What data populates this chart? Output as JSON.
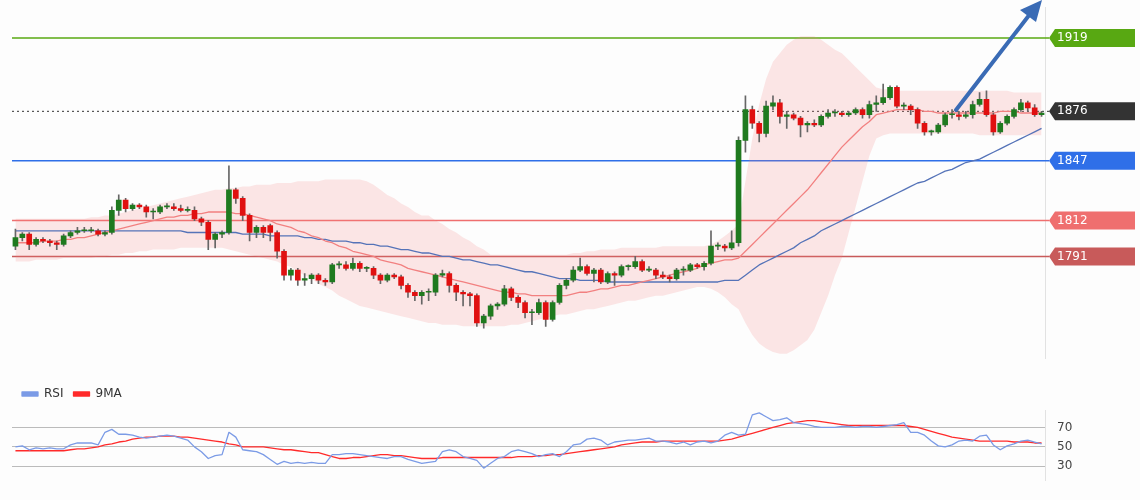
{
  "chart_data": [
    {
      "type": "candlestick",
      "categories": [
        null,
        null,
        null,
        null,
        null,
        null,
        null,
        null,
        null,
        null,
        null,
        null,
        null,
        null,
        null,
        null,
        null,
        null,
        null,
        null,
        null,
        null,
        null,
        null,
        null,
        null,
        null,
        null,
        null,
        null,
        null,
        null,
        null,
        null,
        null,
        null,
        null,
        null,
        null,
        null,
        null,
        null,
        null,
        null,
        null,
        null,
        null,
        null,
        null,
        null,
        null,
        null,
        null,
        null,
        null,
        null,
        null,
        null,
        null,
        null,
        null,
        null,
        null,
        null,
        null,
        null,
        null,
        null,
        null,
        null,
        null,
        null,
        null,
        null,
        null,
        null,
        null,
        null,
        null,
        null,
        null,
        null,
        null,
        null,
        null,
        null,
        null,
        null,
        null,
        null,
        null,
        null,
        null,
        null,
        null,
        null,
        null,
        null,
        null,
        null,
        null,
        null,
        null,
        null,
        null,
        null,
        null,
        null,
        null,
        null,
        null,
        null,
        null,
        null,
        null,
        null,
        null,
        null,
        null,
        null,
        null,
        null,
        null,
        null,
        null,
        null,
        null,
        null,
        null,
        null,
        null,
        null,
        null,
        null,
        null,
        null,
        null,
        null,
        null,
        null,
        null,
        null,
        null,
        null,
        null,
        null,
        null,
        null,
        null,
        null
      ],
      "ohlc": [
        [
          1797,
          1807,
          1795,
          1802
        ],
        [
          1802,
          1805,
          1800,
          1804
        ],
        [
          1804,
          1805,
          1795,
          1798
        ],
        [
          1798,
          1802,
          1797,
          1801
        ],
        [
          1801,
          1802,
          1799,
          1800
        ],
        [
          1800,
          1801,
          1797,
          1799
        ],
        [
          1799,
          1800,
          1795,
          1798
        ],
        [
          1798,
          1804,
          1797,
          1803
        ],
        [
          1803,
          1806,
          1802,
          1805
        ],
        [
          1805,
          1808,
          1804,
          1806
        ],
        [
          1806,
          1808,
          1805,
          1806
        ],
        [
          1806,
          1808,
          1805,
          1806
        ],
        [
          1806,
          1807,
          1803,
          1804
        ],
        [
          1804,
          1806,
          1803,
          1805
        ],
        [
          1805,
          1820,
          1804,
          1818
        ],
        [
          1818,
          1827,
          1815,
          1824
        ],
        [
          1824,
          1825,
          1817,
          1819
        ],
        [
          1819,
          1822,
          1818,
          1821
        ],
        [
          1821,
          1822,
          1819,
          1820
        ],
        [
          1820,
          1821,
          1814,
          1817
        ],
        [
          1817,
          1819,
          1813,
          1817
        ],
        [
          1817,
          1821,
          1816,
          1820
        ],
        [
          1820,
          1822,
          1819,
          1820
        ],
        [
          1820,
          1822,
          1818,
          1819
        ],
        [
          1819,
          1821,
          1817,
          1818
        ],
        [
          1818,
          1820,
          1817,
          1818
        ],
        [
          1818,
          1820,
          1812,
          1813
        ],
        [
          1813,
          1814,
          1809,
          1811
        ],
        [
          1811,
          1812,
          1795,
          1801
        ],
        [
          1801,
          1805,
          1796,
          1804
        ],
        [
          1804,
          1806,
          1802,
          1805
        ],
        [
          1805,
          1844,
          1804,
          1830
        ],
        [
          1830,
          1831,
          1822,
          1825
        ],
        [
          1825,
          1826,
          1812,
          1815
        ],
        [
          1815,
          1816,
          1800,
          1805
        ],
        [
          1805,
          1809,
          1802,
          1808
        ],
        [
          1808,
          1809,
          1802,
          1805
        ],
        [
          1809,
          1810,
          1800,
          1805
        ],
        [
          1805,
          1806,
          1790,
          1794
        ],
        [
          1794,
          1795,
          1777,
          1780
        ],
        [
          1780,
          1784,
          1777,
          1783
        ],
        [
          1783,
          1784,
          1774,
          1777
        ],
        [
          1777,
          1781,
          1774,
          1778
        ],
        [
          1778,
          1781,
          1775,
          1780
        ],
        [
          1780,
          1781,
          1775,
          1777
        ],
        [
          1777,
          1778,
          1774,
          1776
        ],
        [
          1776,
          1787,
          1775,
          1786
        ],
        [
          1786,
          1788,
          1784,
          1786
        ],
        [
          1786,
          1788,
          1783,
          1784
        ],
        [
          1784,
          1790,
          1783,
          1787
        ],
        [
          1787,
          1788,
          1782,
          1784
        ],
        [
          1784,
          1785,
          1782,
          1784
        ],
        [
          1784,
          1785,
          1778,
          1780
        ],
        [
          1780,
          1781,
          1775,
          1777
        ],
        [
          1777,
          1781,
          1776,
          1780
        ],
        [
          1780,
          1781,
          1778,
          1779
        ],
        [
          1779,
          1780,
          1772,
          1774
        ],
        [
          1774,
          1775,
          1767,
          1770
        ],
        [
          1770,
          1771,
          1765,
          1768
        ],
        [
          1768,
          1771,
          1763,
          1770
        ],
        [
          1770,
          1772,
          1765,
          1770
        ],
        [
          1770,
          1781,
          1768,
          1780
        ],
        [
          1780,
          1783,
          1779,
          1781
        ],
        [
          1781,
          1782,
          1770,
          1774
        ],
        [
          1774,
          1775,
          1765,
          1770
        ],
        [
          1770,
          1771,
          1762,
          1769
        ],
        [
          1769,
          1770,
          1762,
          1768
        ],
        [
          1768,
          1769,
          1750,
          1752
        ],
        [
          1752,
          1757,
          1749,
          1756
        ],
        [
          1756,
          1763,
          1754,
          1762
        ],
        [
          1762,
          1764,
          1760,
          1763
        ],
        [
          1763,
          1774,
          1762,
          1772
        ],
        [
          1772,
          1773,
          1765,
          1767
        ],
        [
          1767,
          1768,
          1761,
          1764
        ],
        [
          1764,
          1765,
          1755,
          1758
        ],
        [
          1758,
          1760,
          1751,
          1758
        ],
        [
          1758,
          1766,
          1757,
          1764
        ],
        [
          1764,
          1765,
          1750,
          1754
        ],
        [
          1754,
          1765,
          1753,
          1764
        ],
        [
          1764,
          1775,
          1763,
          1774
        ],
        [
          1774,
          1778,
          1772,
          1777
        ],
        [
          1777,
          1785,
          1776,
          1783
        ],
        [
          1783,
          1790,
          1782,
          1785
        ],
        [
          1785,
          1786,
          1780,
          1781
        ],
        [
          1781,
          1784,
          1776,
          1783
        ],
        [
          1783,
          1784,
          1775,
          1776
        ],
        [
          1776,
          1782,
          1775,
          1781
        ],
        [
          1781,
          1782,
          1774,
          1780
        ],
        [
          1780,
          1786,
          1779,
          1785
        ],
        [
          1785,
          1786,
          1783,
          1785
        ],
        [
          1785,
          1791,
          1784,
          1788
        ],
        [
          1788,
          1789,
          1782,
          1783
        ],
        [
          1783,
          1785,
          1782,
          1783
        ],
        [
          1783,
          1784,
          1778,
          1780
        ],
        [
          1780,
          1782,
          1778,
          1779
        ],
        [
          1779,
          1780,
          1776,
          1778
        ],
        [
          1778,
          1784,
          1777,
          1783
        ],
        [
          1783,
          1785,
          1780,
          1783
        ],
        [
          1783,
          1787,
          1782,
          1786
        ],
        [
          1786,
          1787,
          1784,
          1785
        ],
        [
          1785,
          1788,
          1783,
          1787
        ],
        [
          1787,
          1806,
          1786,
          1797
        ],
        [
          1797,
          1799,
          1795,
          1797
        ],
        [
          1797,
          1798,
          1794,
          1796
        ],
        [
          1796,
          1806,
          1795,
          1799
        ],
        [
          1799,
          1861,
          1797,
          1859
        ],
        [
          1859,
          1885,
          1852,
          1877
        ],
        [
          1877,
          1879,
          1866,
          1869
        ],
        [
          1869,
          1870,
          1858,
          1863
        ],
        [
          1863,
          1882,
          1861,
          1879
        ],
        [
          1879,
          1885,
          1877,
          1881
        ],
        [
          1881,
          1883,
          1869,
          1873
        ],
        [
          1873,
          1876,
          1866,
          1874
        ],
        [
          1874,
          1875,
          1871,
          1872
        ],
        [
          1872,
          1873,
          1861,
          1868
        ],
        [
          1868,
          1870,
          1864,
          1869
        ],
        [
          1869,
          1871,
          1867,
          1868
        ],
        [
          1868,
          1874,
          1867,
          1873
        ],
        [
          1873,
          1877,
          1872,
          1875
        ],
        [
          1875,
          1877,
          1873,
          1875
        ],
        [
          1875,
          1876,
          1873,
          1874
        ],
        [
          1874,
          1876,
          1873,
          1875
        ],
        [
          1875,
          1878,
          1874,
          1877
        ],
        [
          1877,
          1878,
          1872,
          1874
        ],
        [
          1874,
          1882,
          1872,
          1880
        ],
        [
          1880,
          1885,
          1876,
          1881
        ],
        [
          1881,
          1892,
          1880,
          1884
        ],
        [
          1884,
          1891,
          1883,
          1890
        ],
        [
          1890,
          1891,
          1878,
          1879
        ],
        [
          1879,
          1881,
          1877,
          1879
        ],
        [
          1879,
          1880,
          1874,
          1877
        ],
        [
          1877,
          1878,
          1866,
          1869
        ],
        [
          1869,
          1870,
          1862,
          1864
        ],
        [
          1864,
          1865,
          1862,
          1864
        ],
        [
          1864,
          1869,
          1863,
          1868
        ],
        [
          1868,
          1875,
          1867,
          1874
        ],
        [
          1874,
          1877,
          1872,
          1874
        ],
        [
          1874,
          1876,
          1871,
          1873
        ],
        [
          1873,
          1876,
          1872,
          1874
        ],
        [
          1874,
          1882,
          1872,
          1880
        ],
        [
          1880,
          1887,
          1879,
          1883
        ],
        [
          1883,
          1888,
          1873,
          1874
        ],
        [
          1874,
          1875,
          1862,
          1864
        ],
        [
          1864,
          1870,
          1863,
          1869
        ],
        [
          1869,
          1874,
          1868,
          1873
        ],
        [
          1873,
          1878,
          1872,
          1877
        ],
        [
          1877,
          1883,
          1876,
          1881
        ],
        [
          1881,
          1882,
          1876,
          1878
        ],
        [
          1878,
          1880,
          1873,
          1874
        ],
        [
          1874,
          1876,
          1873,
          1875
        ]
      ],
      "series": [
        {
          "type": "line",
          "color": "#f28080",
          "values": [
            1799,
            1799,
            1799,
            1799,
            1800,
            1800,
            1800,
            1801,
            1801,
            1802,
            1802,
            1803,
            1804,
            1805,
            1806,
            1807,
            1808,
            1809,
            1810,
            1811,
            1812,
            1813,
            1814,
            1814,
            1815,
            1815,
            1816,
            1816,
            1817,
            1817,
            1817,
            1817,
            1816,
            1816,
            1815,
            1814,
            1813,
            1812,
            1810,
            1809,
            1808,
            1806,
            1805,
            1803,
            1802,
            1800,
            1799,
            1797,
            1796,
            1794,
            1793,
            1792,
            1791,
            1789,
            1788,
            1787,
            1786,
            1784,
            1783,
            1782,
            1781,
            1780,
            1779,
            1778,
            1777,
            1776,
            1775,
            1774,
            1773,
            1772,
            1771,
            1770,
            1770,
            1769,
            1769,
            1768,
            1768,
            1768,
            1768,
            1768,
            1768,
            1769,
            1770,
            1770,
            1771,
            1772,
            1772,
            1773,
            1774,
            1774,
            1775,
            1776,
            1777,
            1778,
            1779,
            1780,
            1781,
            1782,
            1783,
            1784,
            1786,
            1787,
            1788,
            1789,
            1789,
            1790,
            1794,
            1798,
            1802,
            1806,
            1810,
            1814,
            1818,
            1822,
            1826,
            1830,
            1835,
            1840,
            1845,
            1850,
            1855,
            1859,
            1863,
            1867,
            1870,
            1874,
            1875,
            1876,
            1877,
            1877,
            1877,
            1877,
            1876,
            1876,
            1875,
            1875,
            1875,
            1875,
            1875,
            1875,
            1875,
            1875,
            1875,
            1876,
            1876,
            1876,
            1875,
            1875,
            1875,
            1875
          ],
          "upper": [
            1813,
            1813,
            1813,
            1813,
            1813,
            1813,
            1813,
            1813,
            1813,
            1813,
            1813,
            1814,
            1814,
            1815,
            1815,
            1816,
            1817,
            1818,
            1819,
            1820,
            1821,
            1822,
            1823,
            1824,
            1825,
            1826,
            1827,
            1828,
            1829,
            1830,
            1830,
            1831,
            1831,
            1832,
            1832,
            1833,
            1833,
            1833,
            1834,
            1834,
            1834,
            1835,
            1835,
            1835,
            1835,
            1836,
            1836,
            1836,
            1836,
            1836,
            1836,
            1835,
            1833,
            1830,
            1827,
            1825,
            1822,
            1820,
            1817,
            1815,
            1815,
            1812,
            1810,
            1807,
            1805,
            1802,
            1800,
            1797,
            1795,
            1792,
            1792,
            1792,
            1792,
            1792,
            1792,
            1792,
            1792,
            1792,
            1792,
            1792,
            1792,
            1793,
            1793,
            1794,
            1794,
            1795,
            1795,
            1795,
            1796,
            1796,
            1796,
            1796,
            1796,
            1796,
            1797,
            1797,
            1797,
            1797,
            1797,
            1797,
            1797,
            1798,
            1800,
            1803,
            1806,
            1810,
            1835,
            1860,
            1880,
            1895,
            1905,
            1910,
            1915,
            1918,
            1920,
            1920,
            1920,
            1918,
            1915,
            1912,
            1910,
            1906,
            1902,
            1898,
            1894,
            1890,
            1889,
            1889,
            1888,
            1888,
            1888,
            1888,
            1888,
            1888,
            1888,
            1888,
            1888,
            1888,
            1888,
            1888,
            1888,
            1888,
            1888,
            1888,
            1888,
            1887,
            1887,
            1887,
            1887,
            1887
          ],
          "lower": [
            1788,
            1788,
            1788,
            1789,
            1789,
            1789,
            1789,
            1790,
            1790,
            1790,
            1790,
            1790,
            1791,
            1791,
            1792,
            1792,
            1793,
            1793,
            1794,
            1794,
            1795,
            1795,
            1795,
            1795,
            1796,
            1796,
            1796,
            1796,
            1796,
            1796,
            1796,
            1795,
            1794,
            1793,
            1792,
            1791,
            1790,
            1789,
            1788,
            1786,
            1785,
            1782,
            1780,
            1778,
            1775,
            1773,
            1771,
            1768,
            1766,
            1764,
            1762,
            1761,
            1760,
            1759,
            1758,
            1757,
            1756,
            1755,
            1754,
            1753,
            1752,
            1752,
            1751,
            1751,
            1751,
            1750,
            1750,
            1750,
            1750,
            1750,
            1750,
            1750,
            1751,
            1751,
            1752,
            1753,
            1754,
            1755,
            1756,
            1757,
            1757,
            1758,
            1759,
            1760,
            1760,
            1761,
            1762,
            1763,
            1764,
            1765,
            1765,
            1766,
            1767,
            1768,
            1768,
            1769,
            1770,
            1771,
            1772,
            1773,
            1773,
            1772,
            1770,
            1767,
            1763,
            1760,
            1752,
            1745,
            1740,
            1737,
            1735,
            1734,
            1734,
            1736,
            1739,
            1742,
            1748,
            1758,
            1768,
            1780,
            1790,
            1805,
            1820,
            1835,
            1850,
            1860,
            1862,
            1863,
            1863,
            1863,
            1863,
            1863,
            1863,
            1863,
            1863,
            1863,
            1863,
            1863,
            1863,
            1863,
            1862,
            1862,
            1862,
            1862,
            1862,
            1862,
            1862,
            1862,
            1862,
            1862
          ]
        },
        {
          "type": "line",
          "color": "#5573b8",
          "values": [
            1806,
            1806,
            1806,
            1806,
            1806,
            1806,
            1806,
            1806,
            1806,
            1806,
            1806,
            1806,
            1806,
            1806,
            1806,
            1806,
            1806,
            1806,
            1806,
            1806,
            1806,
            1806,
            1806,
            1806,
            1806,
            1805,
            1805,
            1805,
            1805,
            1805,
            1805,
            1805,
            1805,
            1804,
            1804,
            1804,
            1804,
            1803,
            1803,
            1803,
            1803,
            1803,
            1802,
            1802,
            1801,
            1801,
            1800,
            1800,
            1800,
            1799,
            1799,
            1798,
            1798,
            1797,
            1797,
            1796,
            1795,
            1795,
            1794,
            1793,
            1793,
            1792,
            1791,
            1791,
            1790,
            1789,
            1789,
            1788,
            1787,
            1786,
            1786,
            1785,
            1784,
            1783,
            1782,
            1782,
            1781,
            1780,
            1779,
            1778,
            1778,
            1778,
            1777,
            1777,
            1777,
            1777,
            1776,
            1776,
            1776,
            1776,
            1776,
            1776,
            1776,
            1776,
            1776,
            1776,
            1776,
            1776,
            1776,
            1776,
            1776,
            1776,
            1776,
            1777,
            1777,
            1777,
            1780,
            1783,
            1786,
            1788,
            1790,
            1792,
            1794,
            1796,
            1799,
            1801,
            1803,
            1806,
            1808,
            1810,
            1812,
            1814,
            1816,
            1818,
            1820,
            1822,
            1824,
            1826,
            1828,
            1830,
            1832,
            1834,
            1835,
            1837,
            1839,
            1841,
            1842,
            1844,
            1846,
            1847,
            1848,
            1850,
            1852,
            1854,
            1856,
            1858,
            1860,
            1862,
            1864,
            1866
          ]
        }
      ],
      "ylim": [
        1731,
        1937
      ],
      "yticks": [
        1791,
        1812,
        1847,
        1876,
        1919
      ],
      "tick_labels": "y",
      "ref_lines": [
        {
          "axis": "y",
          "value": 1919,
          "color": "#58a812",
          "line_style": "solid"
        },
        {
          "axis": "y",
          "value": 1876,
          "color": "#333333",
          "line_style": "dotted"
        },
        {
          "axis": "y",
          "value": 1847,
          "color": "#2f6fe8",
          "line_style": "solid"
        },
        {
          "axis": "y",
          "value": 1812,
          "color": "#ef6f6f",
          "line_style": "solid"
        },
        {
          "axis": "y",
          "value": 1791,
          "color": "#c85a5a",
          "line_style": "solid"
        }
      ]
    },
    {
      "type": "line",
      "categories": [
        null,
        null,
        null,
        null,
        null,
        null,
        null,
        null,
        null,
        null,
        null,
        null,
        null,
        null,
        null,
        null,
        null,
        null,
        null,
        null,
        null,
        null,
        null,
        null,
        null,
        null,
        null,
        null,
        null,
        null,
        null,
        null,
        null,
        null,
        null,
        null,
        null,
        null,
        null,
        null,
        null,
        null,
        null,
        null,
        null,
        null,
        null,
        null,
        null,
        null,
        null,
        null,
        null,
        null,
        null,
        null,
        null,
        null,
        null,
        null,
        null,
        null,
        null,
        null,
        null,
        null,
        null,
        null,
        null,
        null,
        null,
        null,
        null,
        null,
        null,
        null,
        null,
        null,
        null,
        null,
        null,
        null,
        null,
        null,
        null,
        null,
        null,
        null,
        null,
        null,
        null,
        null,
        null,
        null,
        null,
        null,
        null,
        null,
        null,
        null,
        null,
        null,
        null,
        null,
        null,
        null,
        null,
        null,
        null,
        null,
        null,
        null,
        null,
        null,
        null,
        null,
        null,
        null,
        null,
        null,
        null,
        null,
        null,
        null,
        null,
        null,
        null,
        null,
        null,
        null,
        null,
        null,
        null,
        null,
        null,
        null,
        null,
        null,
        null,
        null,
        null,
        null,
        null,
        null,
        null,
        null,
        null,
        null,
        null,
        null
      ],
      "series": [
        {
          "name": "RSI",
          "color": "#7b9be6",
          "values": [
            50,
            51,
            47,
            49,
            48,
            49,
            48,
            48,
            52,
            54,
            54,
            54,
            52,
            65,
            68,
            63,
            63,
            62,
            60,
            59,
            60,
            61,
            62,
            61,
            59,
            57,
            50,
            45,
            38,
            41,
            42,
            65,
            60,
            47,
            46,
            45,
            42,
            37,
            32,
            35,
            33,
            34,
            33,
            34,
            33,
            33,
            42,
            42,
            43,
            43,
            42,
            41,
            40,
            39,
            38,
            40,
            40,
            37,
            35,
            33,
            34,
            35,
            45,
            47,
            45,
            40,
            38,
            36,
            28,
            33,
            38,
            40,
            45,
            47,
            45,
            43,
            40,
            42,
            43,
            40,
            45,
            52,
            53,
            58,
            59,
            57,
            52,
            55,
            56,
            57,
            57,
            58,
            59,
            56,
            56,
            55,
            53,
            55,
            52,
            55,
            56,
            54,
            56,
            62,
            65,
            62,
            63,
            83,
            85,
            81,
            77,
            78,
            80,
            75,
            74,
            73,
            71,
            70,
            70,
            70,
            71,
            71,
            70,
            71,
            71,
            70,
            71,
            72,
            73,
            75,
            65,
            65,
            62,
            56,
            51,
            50,
            52,
            56,
            57,
            56,
            61,
            62,
            52,
            47,
            51,
            53,
            56,
            57,
            55,
            53
          ]
        },
        {
          "name": "9MA",
          "color": "#ff2a2a",
          "values": [
            46,
            46,
            46,
            46,
            46,
            46,
            46,
            46,
            47,
            48,
            48,
            49,
            50,
            52,
            53,
            55,
            56,
            58,
            59,
            60,
            60,
            61,
            61,
            61,
            60,
            60,
            59,
            58,
            57,
            56,
            55,
            53,
            52,
            50,
            50,
            50,
            50,
            49,
            48,
            47,
            47,
            46,
            45,
            44,
            44,
            42,
            40,
            38,
            38,
            39,
            39,
            40,
            41,
            42,
            42,
            41,
            41,
            40,
            39,
            38,
            38,
            38,
            39,
            39,
            39,
            39,
            39,
            39,
            39,
            39,
            39,
            39,
            39,
            40,
            40,
            40,
            41,
            41,
            42,
            42,
            43,
            44,
            45,
            46,
            47,
            48,
            49,
            50,
            52,
            53,
            54,
            55,
            55,
            55,
            56,
            56,
            56,
            56,
            56,
            56,
            56,
            56,
            56,
            57,
            58,
            60,
            62,
            64,
            66,
            68,
            70,
            72,
            74,
            75,
            76,
            77,
            77,
            76,
            75,
            74,
            73,
            72,
            72,
            72,
            72,
            72,
            72,
            72,
            72,
            72,
            71,
            70,
            68,
            66,
            64,
            62,
            60,
            59,
            58,
            57,
            56,
            56,
            56,
            56,
            56,
            55,
            55,
            55,
            54,
            54
          ]
        }
      ],
      "ylim": [
        15,
        88
      ],
      "yticks": [
        30,
        50,
        70
      ],
      "grid": "y",
      "legend": "top left",
      "tick_labels": "y"
    }
  ]
}
